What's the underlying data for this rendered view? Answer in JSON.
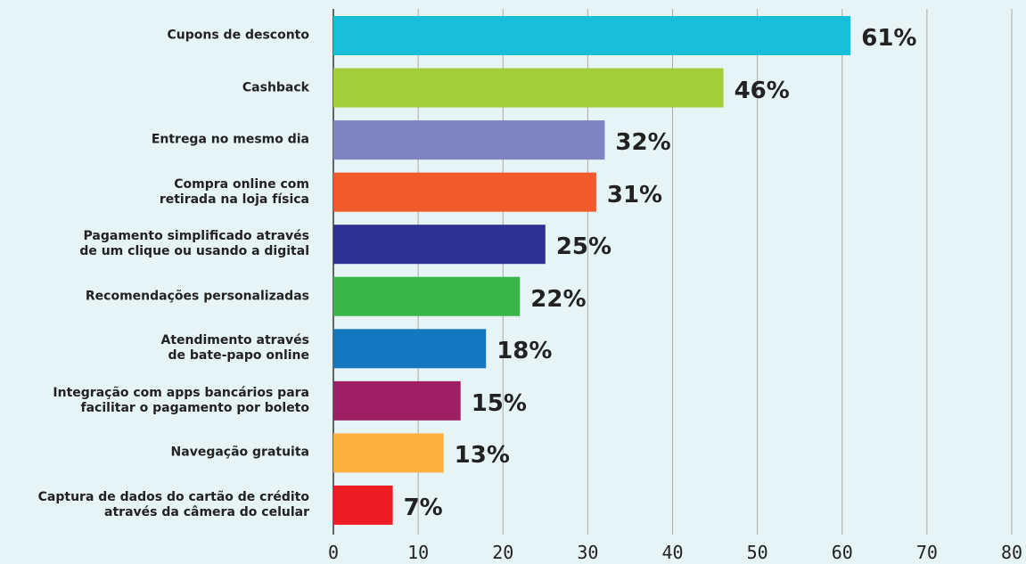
{
  "chart_data": {
    "type": "bar",
    "orientation": "horizontal",
    "categories": [
      "Cupons de desconto",
      "Cashback",
      "Entrega no mesmo dia",
      "Compra online com\nretirada na loja física",
      "Pagamento simplificado através\nde um clique ou usando a digital",
      "Recomendações personalizadas",
      "Atendimento através\nde bate-papo online",
      "Integração com apps bancários para\nfacilitar o pagamento por boleto",
      "Navegação gratuita",
      "Captura de dados do cartão de crédito\natravés da câmera do celular"
    ],
    "values": [
      61,
      46,
      32,
      31,
      25,
      22,
      18,
      15,
      13,
      7
    ],
    "value_labels": [
      "61%",
      "46%",
      "32%",
      "31%",
      "25%",
      "22%",
      "18%",
      "15%",
      "13%",
      "7%"
    ],
    "colors": [
      "#17bfd9",
      "#a3cd39",
      "#7f83c1",
      "#f05a2a",
      "#2e3192",
      "#39b54a",
      "#1577bf",
      "#9e1f63",
      "#fbb040",
      "#ed1c24"
    ],
    "xlim": [
      0,
      80
    ],
    "xticks": [
      0,
      10,
      20,
      30,
      40,
      50,
      60,
      70,
      80
    ],
    "grid": true
  }
}
